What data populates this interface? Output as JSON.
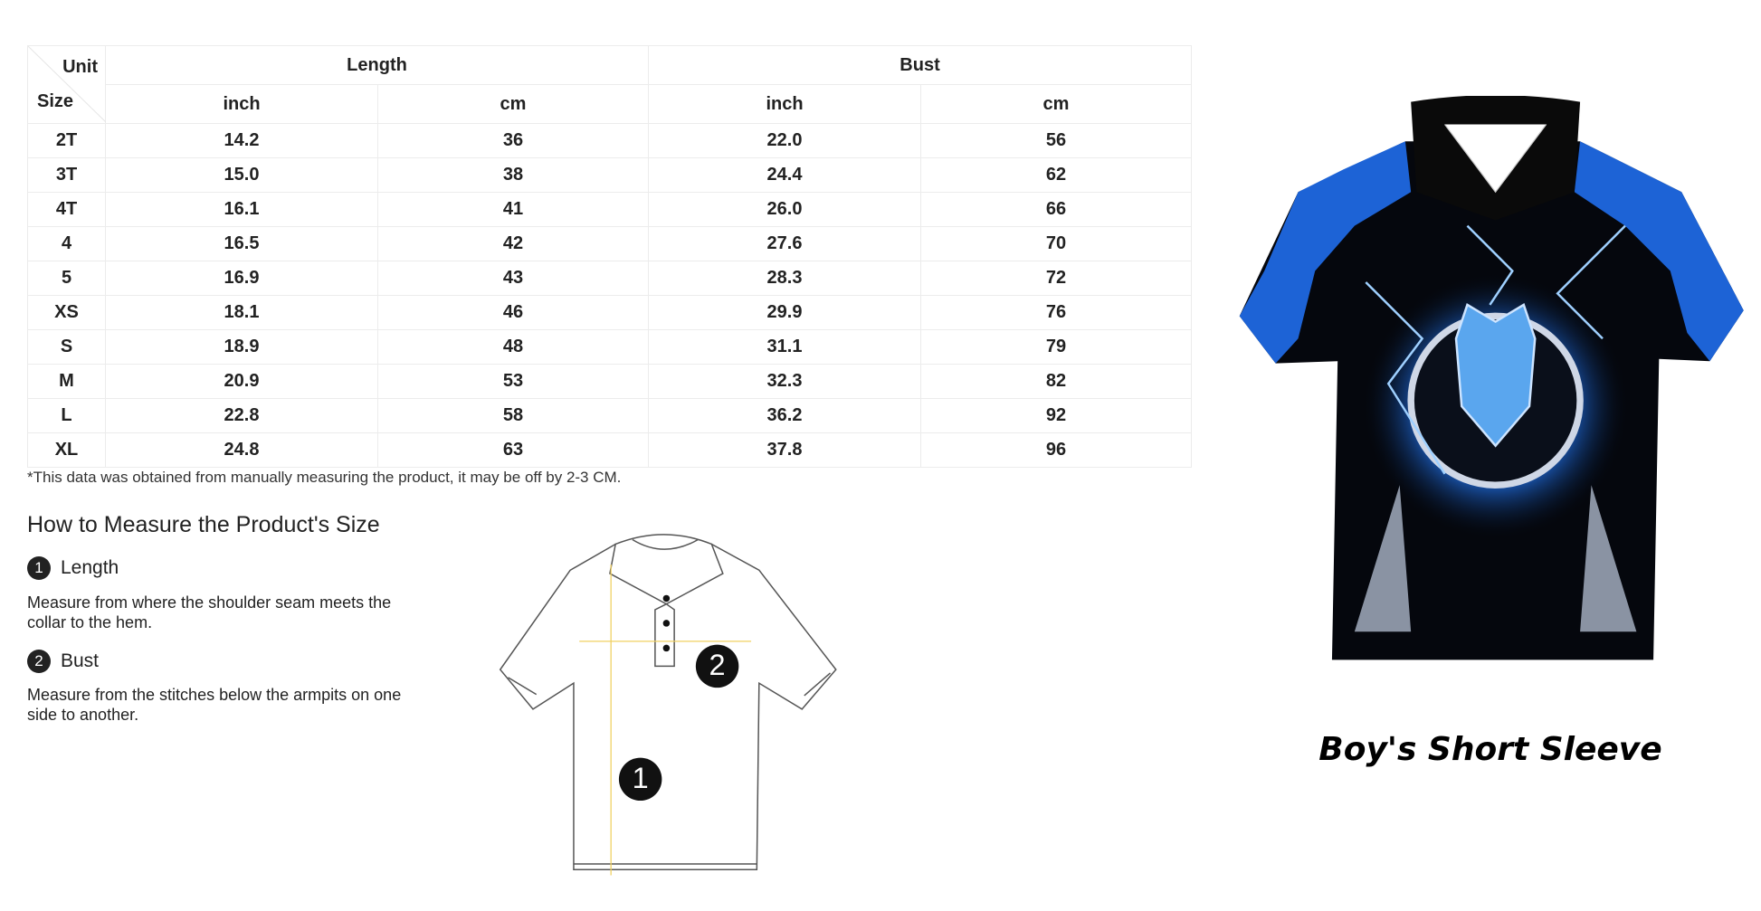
{
  "table": {
    "corner_unit": "Unit",
    "corner_size": "Size",
    "groups": [
      "Length",
      "Bust"
    ],
    "units": [
      "inch",
      "cm",
      "inch",
      "cm"
    ],
    "rows": [
      [
        "2T",
        "14.2",
        "36",
        "22.0",
        "56"
      ],
      [
        "3T",
        "15.0",
        "38",
        "24.4",
        "62"
      ],
      [
        "4T",
        "16.1",
        "41",
        "26.0",
        "66"
      ],
      [
        "4",
        "16.5",
        "42",
        "27.6",
        "70"
      ],
      [
        "5",
        "16.9",
        "43",
        "28.3",
        "72"
      ],
      [
        "XS",
        "18.1",
        "46",
        "29.9",
        "76"
      ],
      [
        "S",
        "18.9",
        "48",
        "31.1",
        "79"
      ],
      [
        "M",
        "20.9",
        "53",
        "32.3",
        "82"
      ],
      [
        "L",
        "22.8",
        "58",
        "36.2",
        "92"
      ],
      [
        "XL",
        "24.8",
        "63",
        "37.8",
        "96"
      ]
    ]
  },
  "note": "*This data was obtained from manually measuring the product, it may be off by 2-3 CM.",
  "guide": {
    "title": "How to Measure the Product's Size",
    "steps": [
      {
        "number": "1",
        "name": "Length",
        "text": "Measure from where the shoulder seam meets the collar to the hem."
      },
      {
        "number": "2",
        "name": "Bust",
        "text": "Measure from the stitches below the armpits on one side to another."
      }
    ]
  },
  "product": {
    "caption": "Boy's Short Sleeve"
  }
}
